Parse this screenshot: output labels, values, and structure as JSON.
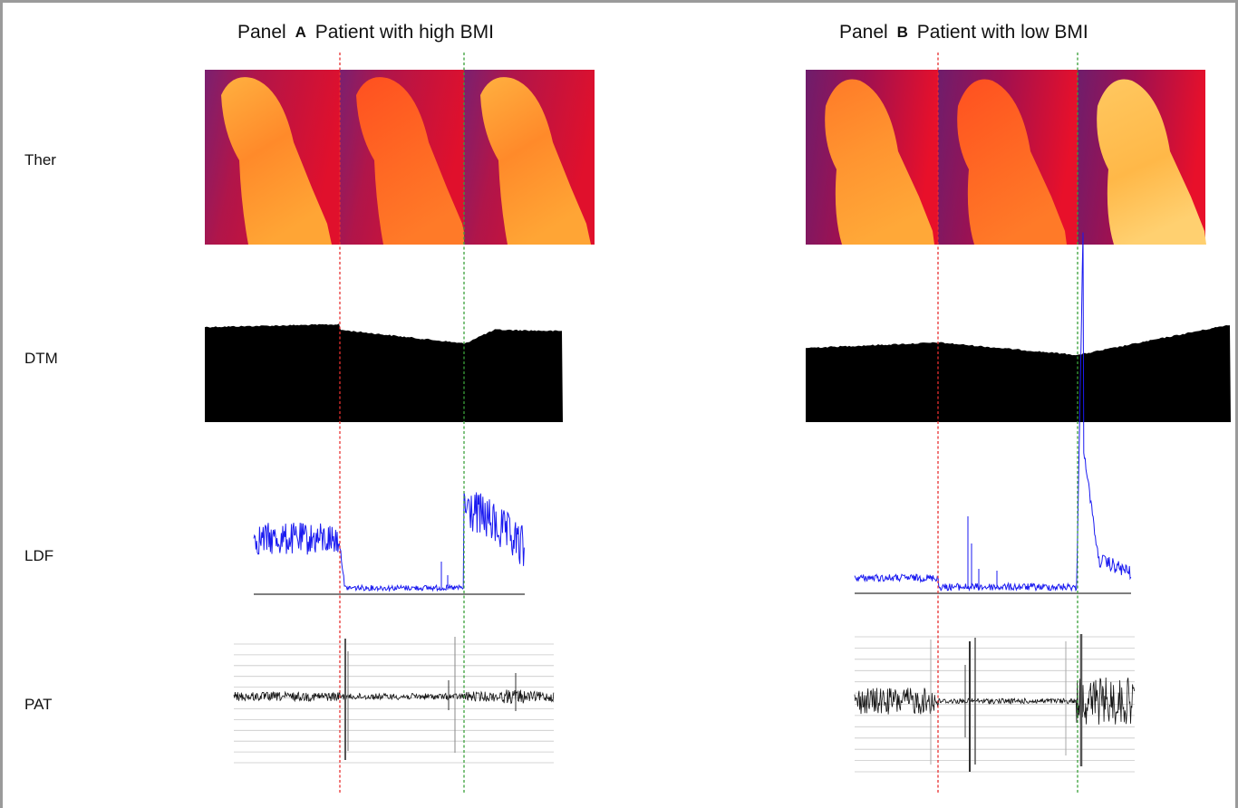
{
  "panels": [
    {
      "prefix": "Panel",
      "letter": "A",
      "caption": "Patient with high BMI"
    },
    {
      "prefix": "Panel",
      "letter": "B",
      "caption": "Patient with low BMI"
    }
  ],
  "row_labels": {
    "ther": "Ther",
    "dtm": "DTM",
    "ldf": "LDF",
    "pat": "PAT"
  },
  "colors": {
    "occlusion_line": "#e83030",
    "release_line": "#3aa03a",
    "ldf_trace": "#1a1af0",
    "dtm_fill": "#000000",
    "pat_trace": "#111111",
    "thermal_cold": "#6a1a6e",
    "thermal_mid": "#e01028",
    "thermal_hot": "#ffa030"
  }
}
